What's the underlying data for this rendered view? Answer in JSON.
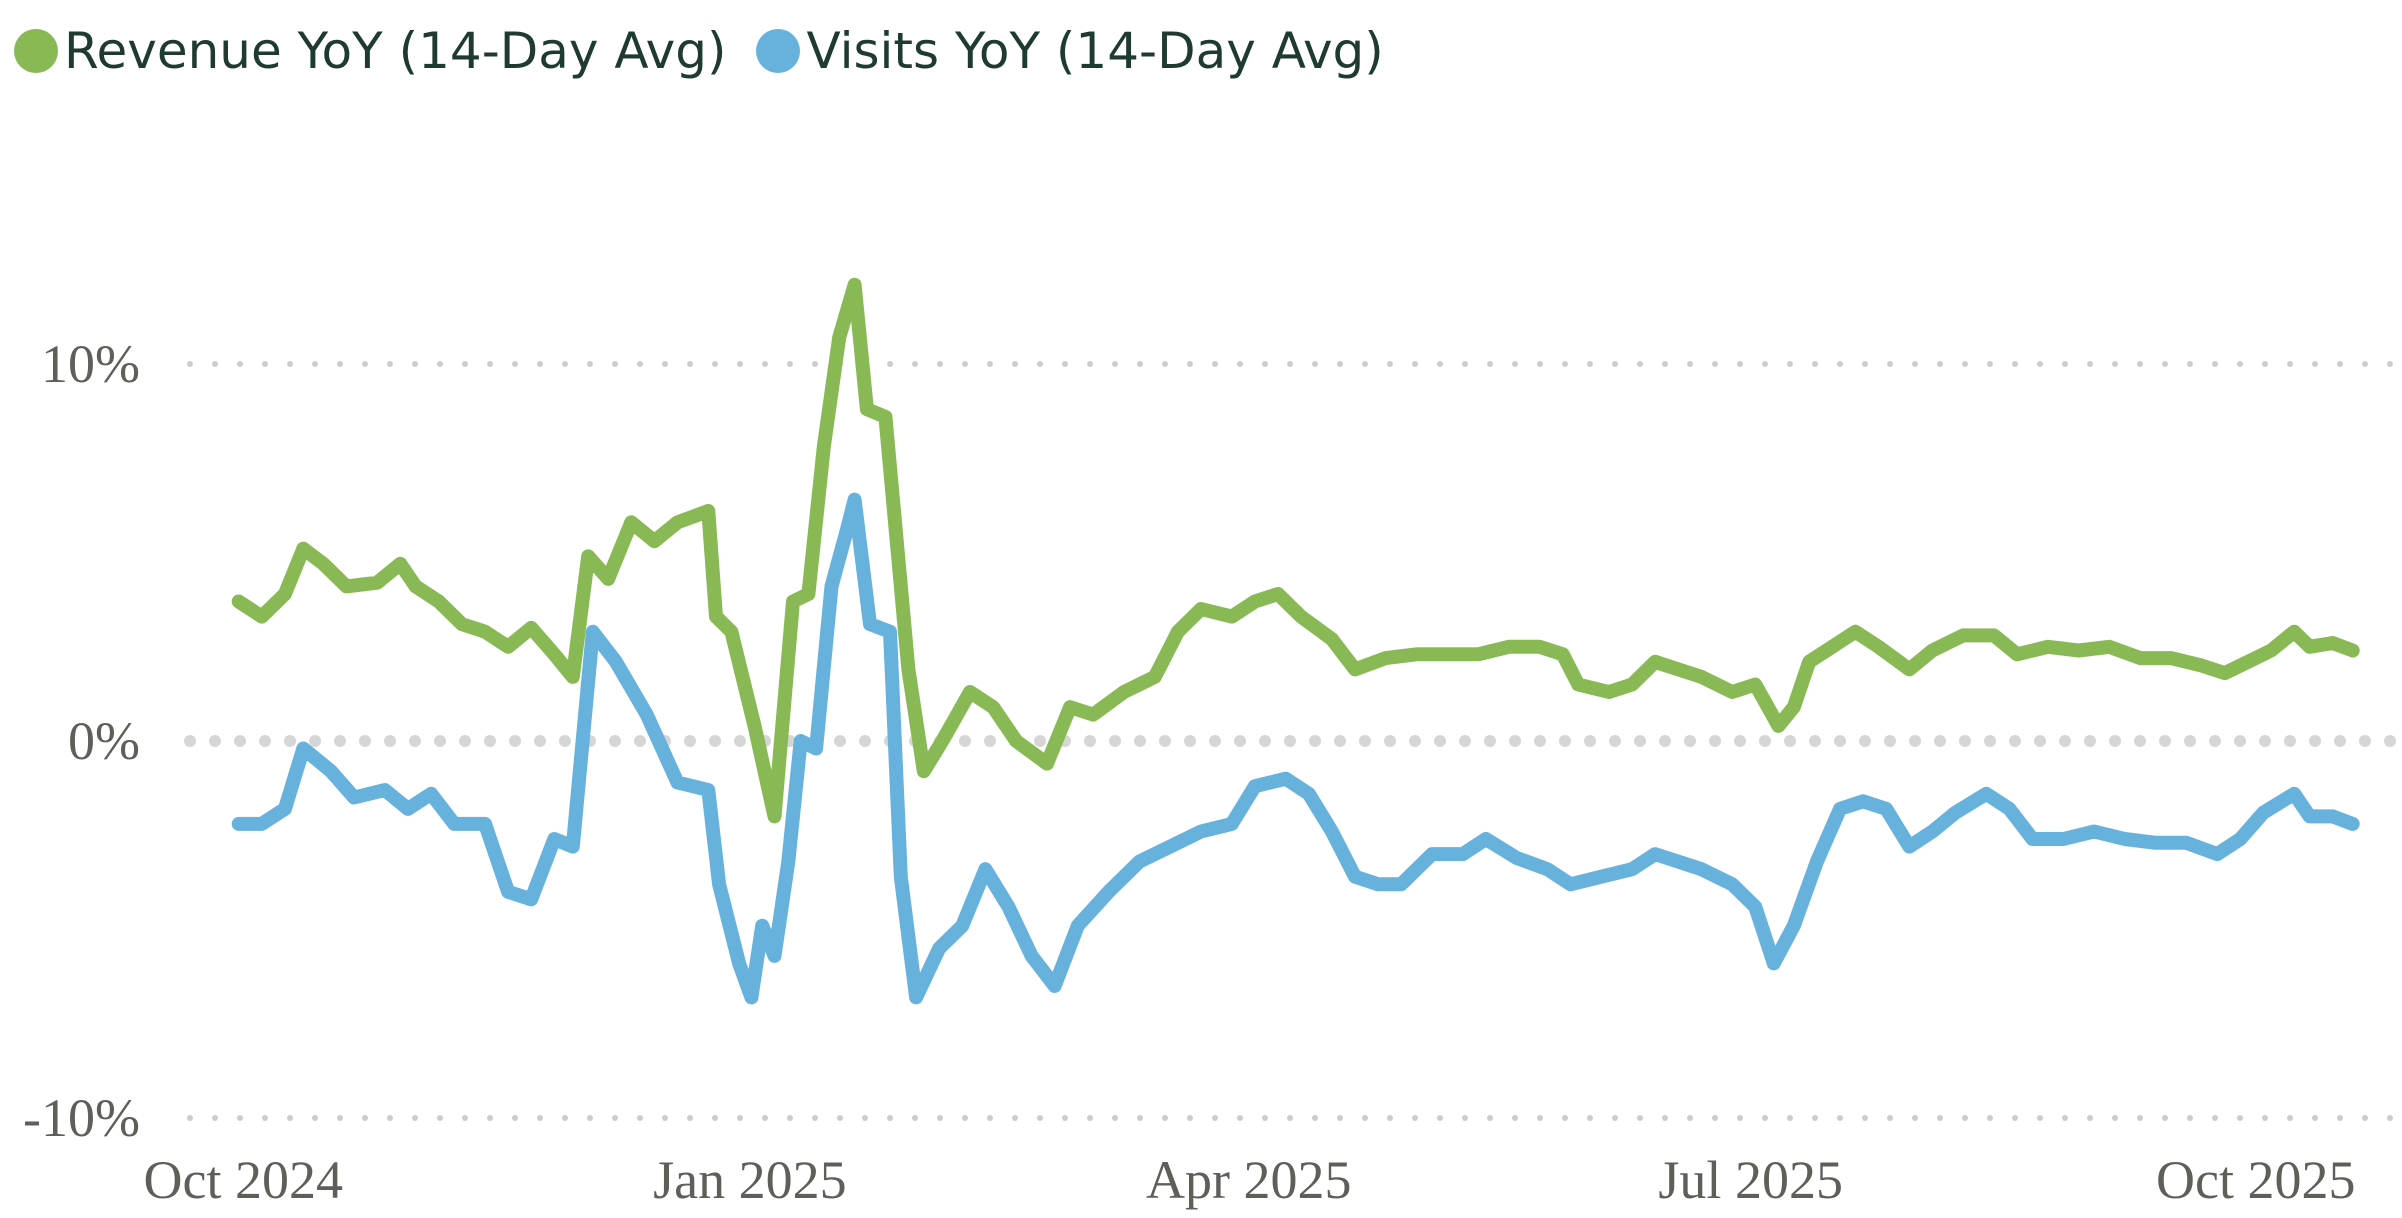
{
  "legend": {
    "items": [
      {
        "label": "Revenue YoY (14-Day Avg)",
        "color": "#88b955"
      },
      {
        "label": "Visits YoY (14-Day Avg)",
        "color": "#67b2dd"
      }
    ]
  },
  "chart_data": {
    "type": "line",
    "title": "",
    "xlabel": "",
    "ylabel": "",
    "ylim": [
      -10,
      14
    ],
    "y_ticks": [
      {
        "value": 10,
        "label": "10%"
      },
      {
        "value": 0,
        "label": "0%"
      },
      {
        "value": -10,
        "label": "-10%"
      }
    ],
    "x_ticks": [
      {
        "date": "2024-10-01",
        "label": "Oct 2024"
      },
      {
        "date": "2025-01-01",
        "label": "Jan 2025"
      },
      {
        "date": "2025-04-01",
        "label": "Apr 2025"
      },
      {
        "date": "2025-07-01",
        "label": "Jul 2025"
      },
      {
        "date": "2025-10-01",
        "label": "Oct 2025"
      }
    ],
    "x_range": [
      "2024-09-29",
      "2025-10-16"
    ],
    "grid": "dotted horizontal at y-ticks",
    "legend_position": "top-left",
    "series": [
      {
        "name": "Revenue YoY (14-Day Avg)",
        "color": "#88b955",
        "points": [
          [
            155,
            3.7
          ],
          [
            170,
            3.3
          ],
          [
            185,
            3.9
          ],
          [
            197,
            5.1
          ],
          [
            210,
            4.7
          ],
          [
            225,
            4.1
          ],
          [
            245,
            4.2
          ],
          [
            260,
            4.7
          ],
          [
            270,
            4.1
          ],
          [
            285,
            3.7
          ],
          [
            300,
            3.1
          ],
          [
            315,
            2.9
          ],
          [
            330,
            2.5
          ],
          [
            345,
            3.0
          ],
          [
            360,
            2.3
          ],
          [
            372,
            1.7
          ],
          [
            382,
            4.9
          ],
          [
            395,
            4.3
          ],
          [
            410,
            5.8
          ],
          [
            425,
            5.3
          ],
          [
            440,
            5.8
          ],
          [
            460,
            6.1
          ],
          [
            465,
            3.3
          ],
          [
            475,
            2.9
          ],
          [
            490,
            0.4
          ],
          [
            503,
            -2.0
          ],
          [
            515,
            3.7
          ],
          [
            525,
            3.9
          ],
          [
            535,
            7.8
          ],
          [
            545,
            10.7
          ],
          [
            555,
            12.1
          ],
          [
            563,
            8.8
          ],
          [
            575,
            8.6
          ],
          [
            590,
            1.9
          ],
          [
            600,
            -0.8
          ],
          [
            612,
            0.0
          ],
          [
            630,
            1.3
          ],
          [
            645,
            0.9
          ],
          [
            660,
            0.0
          ],
          [
            680,
            -0.6
          ],
          [
            695,
            0.9
          ],
          [
            710,
            0.7
          ],
          [
            730,
            1.3
          ],
          [
            750,
            1.7
          ],
          [
            765,
            2.9
          ],
          [
            780,
            3.5
          ],
          [
            800,
            3.3
          ],
          [
            815,
            3.7
          ],
          [
            830,
            3.9
          ],
          [
            845,
            3.3
          ],
          [
            865,
            2.7
          ],
          [
            880,
            1.9
          ],
          [
            900,
            2.2
          ],
          [
            920,
            2.3
          ],
          [
            940,
            2.3
          ],
          [
            960,
            2.3
          ],
          [
            980,
            2.5
          ],
          [
            1000,
            2.5
          ],
          [
            1015,
            2.3
          ],
          [
            1025,
            1.5
          ],
          [
            1045,
            1.3
          ],
          [
            1060,
            1.5
          ],
          [
            1075,
            2.1
          ],
          [
            1090,
            1.9
          ],
          [
            1105,
            1.7
          ],
          [
            1125,
            1.3
          ],
          [
            1140,
            1.5
          ],
          [
            1155,
            0.4
          ],
          [
            1165,
            0.9
          ],
          [
            1175,
            2.1
          ],
          [
            1190,
            2.5
          ],
          [
            1205,
            2.9
          ],
          [
            1220,
            2.5
          ],
          [
            1240,
            1.9
          ],
          [
            1255,
            2.4
          ],
          [
            1275,
            2.8
          ],
          [
            1295,
            2.8
          ],
          [
            1310,
            2.3
          ],
          [
            1330,
            2.5
          ],
          [
            1350,
            2.4
          ],
          [
            1370,
            2.5
          ],
          [
            1390,
            2.2
          ],
          [
            1410,
            2.2
          ],
          [
            1430,
            2.0
          ],
          [
            1445,
            1.8
          ],
          [
            1460,
            2.1
          ],
          [
            1475,
            2.4
          ],
          [
            1490,
            2.9
          ],
          [
            1500,
            2.5
          ],
          [
            1515,
            2.6
          ],
          [
            1528,
            2.4
          ]
        ]
      },
      {
        "name": "Visits YoY (14-Day Avg)",
        "color": "#67b2dd",
        "points": [
          [
            155,
            -2.2
          ],
          [
            170,
            -2.2
          ],
          [
            185,
            -1.8
          ],
          [
            197,
            -0.2
          ],
          [
            215,
            -0.8
          ],
          [
            230,
            -1.5
          ],
          [
            250,
            -1.3
          ],
          [
            265,
            -1.8
          ],
          [
            280,
            -1.4
          ],
          [
            295,
            -2.2
          ],
          [
            315,
            -2.2
          ],
          [
            330,
            -4.0
          ],
          [
            345,
            -4.2
          ],
          [
            360,
            -2.6
          ],
          [
            372,
            -2.8
          ],
          [
            385,
            2.9
          ],
          [
            400,
            2.1
          ],
          [
            420,
            0.7
          ],
          [
            440,
            -1.1
          ],
          [
            460,
            -1.3
          ],
          [
            467,
            -3.8
          ],
          [
            480,
            -5.9
          ],
          [
            488,
            -6.8
          ],
          [
            495,
            -4.9
          ],
          [
            503,
            -5.7
          ],
          [
            512,
            -3.2
          ],
          [
            520,
            0.0
          ],
          [
            530,
            -0.2
          ],
          [
            540,
            4.1
          ],
          [
            550,
            5.6
          ],
          [
            555,
            6.4
          ],
          [
            565,
            3.1
          ],
          [
            578,
            2.9
          ],
          [
            585,
            -3.6
          ],
          [
            595,
            -6.8
          ],
          [
            610,
            -5.5
          ],
          [
            625,
            -4.9
          ],
          [
            640,
            -3.4
          ],
          [
            655,
            -4.4
          ],
          [
            670,
            -5.7
          ],
          [
            685,
            -6.5
          ],
          [
            700,
            -4.9
          ],
          [
            720,
            -4.0
          ],
          [
            740,
            -3.2
          ],
          [
            760,
            -2.8
          ],
          [
            780,
            -2.4
          ],
          [
            800,
            -2.2
          ],
          [
            815,
            -1.2
          ],
          [
            835,
            -1.0
          ],
          [
            850,
            -1.4
          ],
          [
            865,
            -2.4
          ],
          [
            880,
            -3.6
          ],
          [
            895,
            -3.8
          ],
          [
            910,
            -3.8
          ],
          [
            930,
            -3.0
          ],
          [
            950,
            -3.0
          ],
          [
            965,
            -2.6
          ],
          [
            985,
            -3.1
          ],
          [
            1005,
            -3.4
          ],
          [
            1020,
            -3.8
          ],
          [
            1040,
            -3.6
          ],
          [
            1060,
            -3.4
          ],
          [
            1075,
            -3.0
          ],
          [
            1090,
            -3.2
          ],
          [
            1105,
            -3.4
          ],
          [
            1125,
            -3.8
          ],
          [
            1140,
            -4.4
          ],
          [
            1152,
            -5.9
          ],
          [
            1165,
            -4.9
          ],
          [
            1180,
            -3.2
          ],
          [
            1195,
            -1.8
          ],
          [
            1210,
            -1.6
          ],
          [
            1225,
            -1.8
          ],
          [
            1240,
            -2.8
          ],
          [
            1255,
            -2.4
          ],
          [
            1270,
            -1.9
          ],
          [
            1290,
            -1.4
          ],
          [
            1305,
            -1.8
          ],
          [
            1320,
            -2.6
          ],
          [
            1340,
            -2.6
          ],
          [
            1360,
            -2.4
          ],
          [
            1380,
            -2.6
          ],
          [
            1400,
            -2.7
          ],
          [
            1420,
            -2.7
          ],
          [
            1440,
            -3.0
          ],
          [
            1455,
            -2.6
          ],
          [
            1470,
            -1.9
          ],
          [
            1490,
            -1.4
          ],
          [
            1500,
            -2.0
          ],
          [
            1515,
            -2.0
          ],
          [
            1528,
            -2.2
          ]
        ]
      }
    ]
  }
}
